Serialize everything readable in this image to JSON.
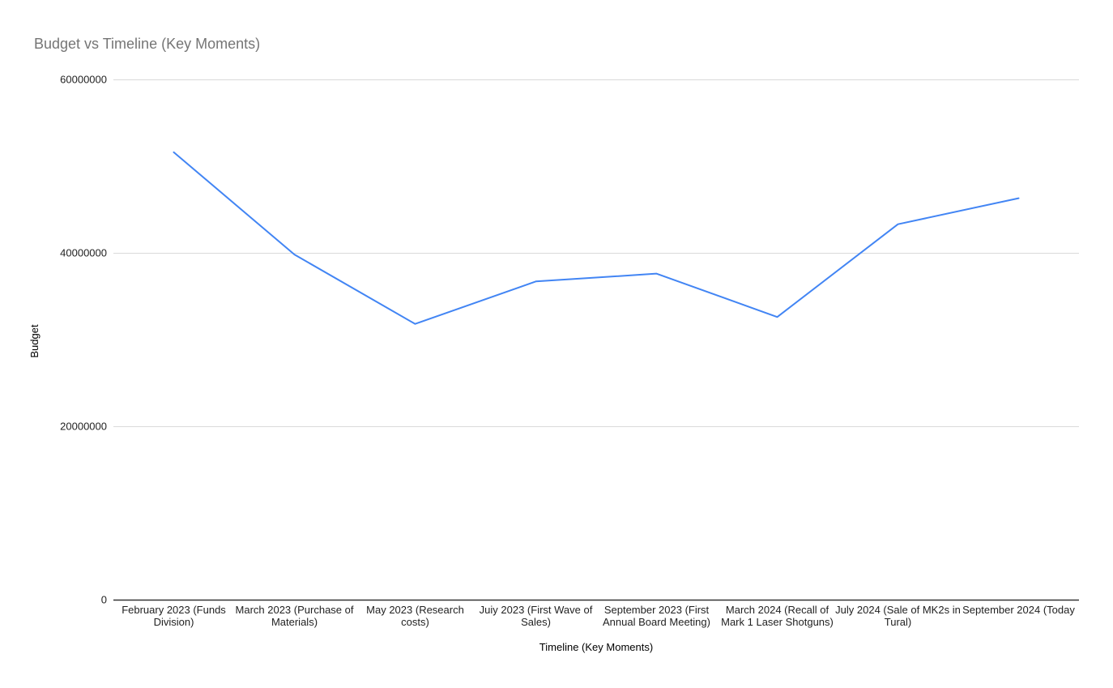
{
  "chart_data": {
    "type": "line",
    "title": "Budget vs Timeline (Key Moments)",
    "xlabel": "Timeline (Key Moments)",
    "ylabel": "Budget",
    "categories": [
      "February 2023 (Funds Division)",
      "March 2023 (Purchase of Materials)",
      "May 2023 (Research costs)",
      "Juiy 2023 (First Wave of Sales)",
      "September 2023 (First Annual Board Meeting)",
      "March 2024 (Recall of Mark 1 Laser Shotguns)",
      "July 2024 (Sale of MK2s in Tural)",
      "September 2024 (Today"
    ],
    "x_tick_lines": [
      [
        "February 2023 (Funds",
        "Division)"
      ],
      [
        "March 2023 (Purchase of",
        "Materials)"
      ],
      [
        "May 2023 (Research",
        "costs)"
      ],
      [
        "Juiy 2023 (First Wave of",
        "Sales)"
      ],
      [
        "September 2023 (First",
        "Annual Board Meeting)"
      ],
      [
        "March 2024 (Recall of",
        "Mark 1 Laser Shotguns)"
      ],
      [
        "July 2024 (Sale of MK2s in",
        "Tural)"
      ],
      [
        "September 2024 (Today"
      ]
    ],
    "series": [
      {
        "name": "Budget",
        "values": [
          51600000,
          39800000,
          31800000,
          36700000,
          37600000,
          32600000,
          43300000,
          46300000
        ]
      }
    ],
    "ylim": [
      0,
      60000000
    ],
    "y_ticks": [
      0,
      20000000,
      40000000,
      60000000
    ],
    "y_tick_labels": [
      "0",
      "20000000",
      "40000000",
      "60000000"
    ],
    "grid": true,
    "legend": "none",
    "colors": {
      "series_line": "#4285f4",
      "gridline": "#dadada",
      "axis_baseline": "#333333",
      "title_text": "#757575",
      "tick_text": "#222222",
      "axis_title_text": "#000000",
      "background": "#ffffff"
    }
  }
}
